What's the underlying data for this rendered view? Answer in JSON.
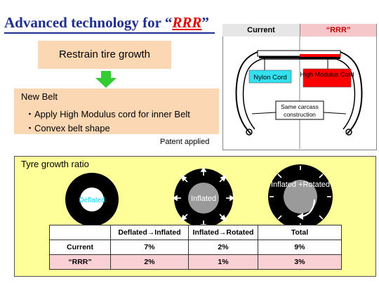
{
  "title": {
    "prefix": "Advanced technology for “",
    "rrr": "RRR",
    "suffix": "”"
  },
  "restrain_label": "Restrain tire growth",
  "new_belt": {
    "title": "New Belt",
    "items": [
      "・Apply High Modulus cord for inner Belt",
      "・Convex belt shape"
    ]
  },
  "patent": "Patent applied",
  "tire_diagram": {
    "header_current": "Current",
    "header_rrr": "“RRR”",
    "nylon_label": "Nylon Cord",
    "high_modulus_label": "High Modulus Cord",
    "carcass_label": [
      "Same carcass",
      "construction"
    ],
    "colors": {
      "nylon": "#33e0f0",
      "high_modulus": "#ff0000"
    }
  },
  "growth": {
    "title": "Tyre growth ratio",
    "wheels": [
      {
        "label": "Deflated",
        "label_color": "#00d0ff"
      },
      {
        "label": "Inflated",
        "label_color": "#ffffff"
      },
      {
        "label": "Inflated +Rotated",
        "label_color": "#ffffff"
      }
    ],
    "table": {
      "headers": [
        "",
        "Deflated→Inflated",
        "Inflated→Rotated",
        "Total"
      ],
      "rows": [
        {
          "name": "Current",
          "values": [
            "7%",
            "2%",
            "9%"
          ]
        },
        {
          "name": "“RRR”",
          "values": [
            "2%",
            "1%",
            "3%"
          ]
        }
      ]
    }
  }
}
